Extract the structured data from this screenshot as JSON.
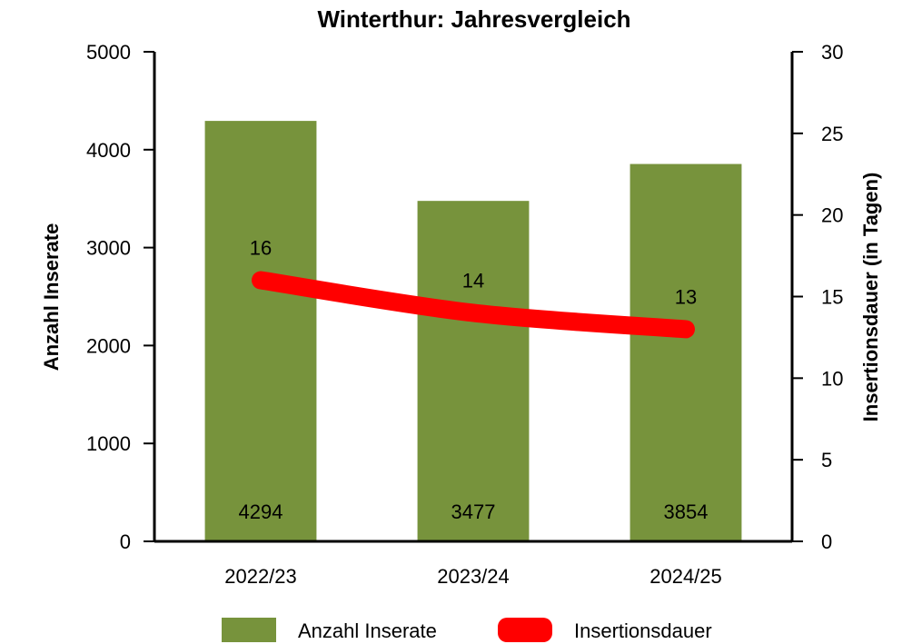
{
  "chart_data": {
    "type": "bar",
    "title": "Winterthur: Jahresvergleich",
    "categories": [
      "2022/23",
      "2023/24",
      "2024/25"
    ],
    "series": [
      {
        "name": "Anzahl Inserate",
        "type": "bar",
        "axis": "left",
        "color": "#77933c",
        "values": [
          4294,
          3477,
          3854
        ]
      },
      {
        "name": "Insertionsdauer",
        "type": "line",
        "axis": "right",
        "color": "#ff0000",
        "values": [
          16,
          14,
          13
        ]
      }
    ],
    "ylabel": "Anzahl Inserate",
    "ylim": [
      0,
      5000
    ],
    "yticks": [
      0,
      1000,
      2000,
      3000,
      4000,
      5000
    ],
    "y2label": "Insertionsdauer (in Tagen)",
    "y2lim": [
      0,
      30
    ],
    "y2ticks": [
      0,
      5,
      10,
      15,
      20,
      25,
      30
    ],
    "grid": false,
    "legend": "bottom"
  }
}
